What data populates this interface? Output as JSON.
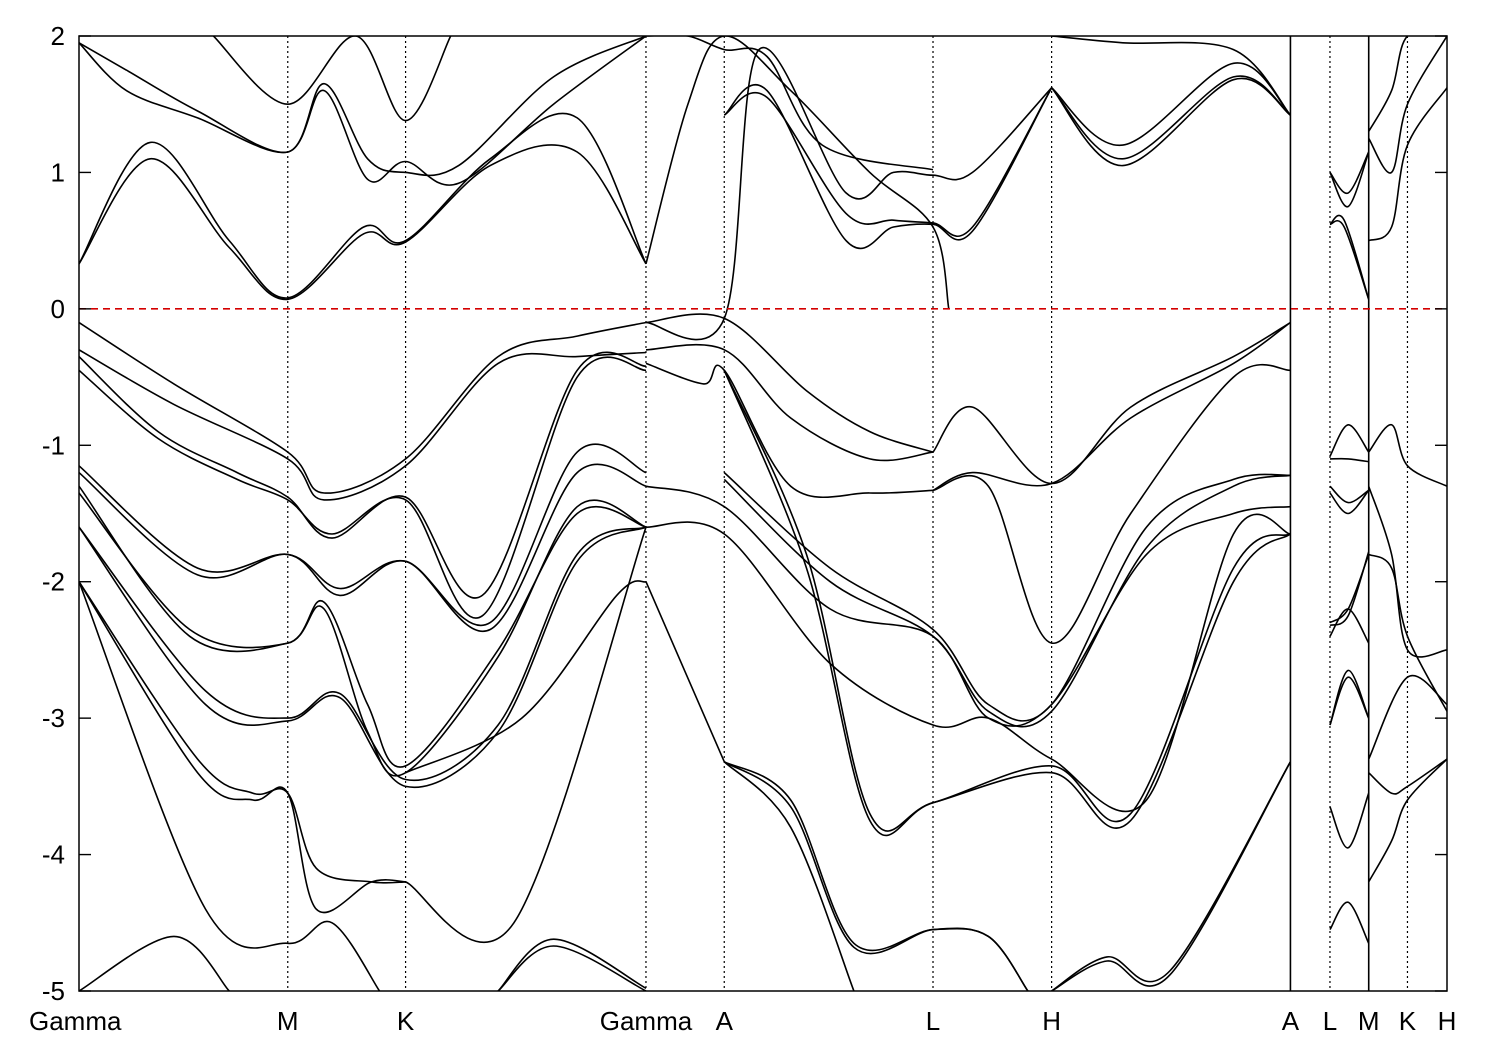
{
  "chart_data": {
    "type": "line",
    "title": "",
    "xlabel": "",
    "ylabel": "",
    "ylim": [
      -5,
      2
    ],
    "yticks": [
      -5,
      -4,
      -3,
      -2,
      -1,
      0,
      1,
      2
    ],
    "xlim": [
      0,
      17.3
    ],
    "kpoints": [
      {
        "label": "Gamma",
        "x": 0
      },
      {
        "label": "M",
        "x": 2.64
      },
      {
        "label": "K",
        "x": 4.13
      },
      {
        "label": "Gamma",
        "x": 7.17
      },
      {
        "label": "A",
        "x": 8.16
      },
      {
        "label": "L",
        "x": 10.8
      },
      {
        "label": "H",
        "x": 12.3
      },
      {
        "label": "A",
        "x": 15.32
      },
      {
        "label": "L",
        "x": 15.82
      },
      {
        "label": "M",
        "x": 16.31
      },
      {
        "label": "K",
        "x": 16.8
      },
      {
        "label": "H",
        "x": 17.3
      }
    ],
    "gaps": [
      15.32,
      16.31
    ],
    "fermi_level": 0,
    "fermi_color": "#d40000",
    "line_color": "#000000",
    "bands": [
      {
        "x": [
          0,
          0.9,
          1.9,
          2.64,
          3.6,
          4.13,
          5.2,
          6.3,
          7.17
        ],
        "y": [
          0.33,
          1.1,
          0.45,
          0.07,
          0.55,
          0.49,
          1.05,
          1.15,
          0.33
        ]
      },
      {
        "x": [
          0,
          0.9,
          1.9,
          2.64,
          3.6,
          4.13,
          5.2,
          6.3,
          7.17
        ],
        "y": [
          0.33,
          1.22,
          0.5,
          0.08,
          0.6,
          0.5,
          1.1,
          1.4,
          0.33
        ]
      },
      {
        "x": [
          0,
          0.6,
          1.5,
          2.64,
          3.1,
          3.65,
          4.13,
          4.8,
          6.0,
          7.17
        ],
        "y": [
          1.95,
          1.6,
          1.4,
          1.15,
          1.6,
          0.95,
          1.08,
          0.92,
          1.5,
          2.0
        ]
      },
      {
        "x": [
          0,
          0.6,
          1.5,
          2.64,
          3.1,
          3.65,
          4.13,
          4.8,
          6.0,
          7.17
        ],
        "y": [
          1.95,
          1.75,
          1.45,
          1.15,
          1.65,
          1.1,
          1.0,
          1.05,
          1.7,
          2.0
        ]
      },
      {
        "x": [
          1.7,
          2.64,
          3.5,
          4.13,
          4.7
        ],
        "y": [
          2.0,
          1.5,
          2.0,
          1.38,
          2.0
        ]
      },
      {
        "x": [
          0,
          1.2,
          2.64,
          3.1,
          4.13,
          5.3,
          6.3,
          7.17
        ],
        "y": [
          -0.1,
          -0.55,
          -1.05,
          -1.35,
          -1.1,
          -0.35,
          -0.2,
          -0.1
        ]
      },
      {
        "x": [
          0,
          1.2,
          2.64,
          3.1,
          4.13,
          5.3,
          6.3,
          7.17
        ],
        "y": [
          -0.3,
          -0.7,
          -1.1,
          -1.4,
          -1.15,
          -0.4,
          -0.35,
          -0.32
        ]
      },
      {
        "x": [
          0,
          1.0,
          2.0,
          2.64,
          3.2,
          4.13,
          5.1,
          6.3,
          7.17
        ],
        "y": [
          -0.35,
          -0.9,
          -1.2,
          -1.38,
          -1.68,
          -1.38,
          -2.1,
          -0.45,
          -0.42
        ]
      },
      {
        "x": [
          0,
          1.0,
          2.0,
          2.64,
          3.2,
          4.13,
          5.1,
          6.3,
          7.17
        ],
        "y": [
          -0.45,
          -0.95,
          -1.25,
          -1.4,
          -1.65,
          -1.4,
          -2.25,
          -0.5,
          -0.45
        ]
      },
      {
        "x": [
          0,
          1.5,
          2.64,
          3.3,
          4.13,
          5.2,
          6.3,
          7.17
        ],
        "y": [
          -1.2,
          -1.95,
          -1.8,
          -2.1,
          -1.85,
          -2.35,
          -1.2,
          -1.3
        ]
      },
      {
        "x": [
          0,
          1.5,
          2.64,
          3.3,
          4.13,
          5.2,
          6.3,
          7.17
        ],
        "y": [
          -1.15,
          -1.9,
          -1.8,
          -2.05,
          -1.85,
          -2.3,
          -1.05,
          -1.2
        ]
      },
      {
        "x": [
          0,
          1.4,
          2.64,
          3.1,
          3.65,
          4.13,
          5.3,
          6.3,
          7.17
        ],
        "y": [
          -1.35,
          -2.35,
          -2.45,
          -2.15,
          -2.9,
          -3.35,
          -2.5,
          -1.5,
          -1.6
        ]
      },
      {
        "x": [
          0,
          1.4,
          2.64,
          3.1,
          3.65,
          4.13,
          5.3,
          6.3,
          7.17
        ],
        "y": [
          -1.3,
          -2.4,
          -2.45,
          -2.2,
          -3.1,
          -3.4,
          -2.55,
          -1.45,
          -1.6
        ]
      },
      {
        "x": [
          0,
          1.6,
          2.64,
          3.3,
          4.13,
          5.3,
          6.3,
          7.17
        ],
        "y": [
          -1.6,
          -2.8,
          -3.0,
          -2.82,
          -3.45,
          -3.05,
          -1.8,
          -1.6
        ]
      },
      {
        "x": [
          0,
          1.6,
          2.64,
          3.3,
          4.13,
          5.3,
          6.3,
          7.17
        ],
        "y": [
          -1.6,
          -2.9,
          -3.02,
          -2.85,
          -3.5,
          -3.1,
          -1.85,
          -1.6
        ]
      },
      {
        "x": [
          0,
          1.5,
          2.2,
          2.64,
          3.0,
          3.7,
          4.13
        ],
        "y": [
          -2.0,
          -3.3,
          -3.55,
          -3.55,
          -4.1,
          -4.2,
          -4.2
        ]
      },
      {
        "x": [
          0,
          1.5,
          2.2,
          2.64,
          3.0,
          3.7,
          4.13
        ],
        "y": [
          -2.0,
          -3.4,
          -3.6,
          -3.55,
          -4.4,
          -4.2,
          -4.2
        ]
      },
      {
        "x": [
          0,
          1.6,
          2.64,
          3.2,
          3.8
        ],
        "y": [
          -2.0,
          -4.4,
          -4.65,
          -4.5,
          -5.0
        ]
      },
      {
        "x": [
          0,
          1.2,
          1.9
        ],
        "y": [
          -5.0,
          -4.6,
          -5.0
        ]
      },
      {
        "x": [
          5.3,
          6.0,
          7.17
        ],
        "y": [
          -5.0,
          -4.62,
          -4.98
        ]
      },
      {
        "x": [
          5.3,
          6.0,
          7.17
        ],
        "y": [
          -5.0,
          -4.67,
          -5.0
        ]
      },
      {
        "x": [
          4.13,
          5.5,
          7.17
        ],
        "y": [
          -4.2,
          -4.5,
          -1.6
        ]
      },
      {
        "x": [
          4.13,
          5.6,
          6.8,
          7.17
        ],
        "y": [
          -3.4,
          -3.0,
          -2.1,
          -2.0
        ]
      },
      {
        "x": [
          7.17,
          7.7,
          8.16,
          9.0,
          10.0,
          10.8,
          11.0
        ],
        "y": [
          0.33,
          1.5,
          2.0,
          1.6,
          1.0,
          0.6,
          0.0
        ]
      },
      {
        "x": [
          7.17,
          8.16,
          8.6,
          9.7,
          10.3,
          10.8,
          11.3,
          12.3
        ],
        "y": [
          -0.1,
          -0.07,
          1.9,
          0.85,
          1.0,
          0.98,
          1.0,
          1.62
        ]
      },
      {
        "x": [
          8.16,
          8.7,
          9.7,
          10.3,
          10.8,
          11.3,
          12.3
        ],
        "y": [
          1.42,
          1.6,
          0.5,
          0.6,
          0.62,
          0.57,
          1.62
        ]
      },
      {
        "x": [
          8.16,
          8.7,
          9.7,
          10.3,
          10.8,
          11.3,
          12.3
        ],
        "y": [
          1.42,
          1.55,
          0.7,
          0.65,
          0.63,
          0.6,
          1.62
        ]
      },
      {
        "x": [
          7.17,
          7.7,
          8.16,
          8.7,
          9.4,
          10.8
        ],
        "y": [
          2.0,
          2.0,
          1.9,
          1.85,
          1.2,
          1.02
        ]
      },
      {
        "x": [
          12.3,
          13.2,
          14.6,
          15.32
        ],
        "y": [
          1.62,
          1.1,
          1.7,
          1.42
        ]
      },
      {
        "x": [
          12.3,
          13.2,
          14.6,
          15.32
        ],
        "y": [
          1.62,
          1.05,
          1.68,
          1.42
        ]
      },
      {
        "x": [
          12.3,
          13.2,
          14.6,
          15.32
        ],
        "y": [
          1.62,
          1.2,
          1.8,
          1.42
        ]
      },
      {
        "x": [
          12.3,
          13.2,
          14.6,
          15.32
        ],
        "y": [
          2.0,
          1.95,
          1.9,
          1.42
        ]
      },
      {
        "x": [
          7.17,
          8.16,
          9.0,
          10.0,
          10.8
        ],
        "y": [
          -0.3,
          -0.3,
          -0.8,
          -1.1,
          -1.05
        ]
      },
      {
        "x": [
          7.17,
          7.9,
          8.16,
          9.0,
          10.0,
          10.8
        ],
        "y": [
          -0.4,
          -0.55,
          -0.45,
          -1.3,
          -1.35,
          -1.33
        ]
      },
      {
        "x": [
          7.17,
          8.16,
          9.2,
          10.0,
          10.8
        ],
        "y": [
          -0.1,
          -0.07,
          -0.6,
          -0.9,
          -1.05
        ]
      },
      {
        "x": [
          10.8,
          11.3,
          12.3,
          13.3,
          14.6,
          15.32
        ],
        "y": [
          -1.05,
          -0.72,
          -1.28,
          -0.72,
          -0.35,
          -0.1
        ]
      },
      {
        "x": [
          10.8,
          11.3,
          12.3,
          13.3,
          14.6,
          15.32
        ],
        "y": [
          -1.33,
          -1.2,
          -1.28,
          -0.8,
          -0.4,
          -0.1
        ]
      },
      {
        "x": [
          8.16,
          9.5,
          10.8,
          11.5,
          12.3,
          13.5,
          14.6,
          15.32
        ],
        "y": [
          -1.2,
          -1.9,
          -2.35,
          -2.9,
          -2.9,
          -1.6,
          -1.25,
          -1.22
        ]
      },
      {
        "x": [
          8.16,
          9.5,
          10.8,
          11.5,
          12.3,
          13.5,
          14.6,
          15.32
        ],
        "y": [
          -1.25,
          -2.0,
          -2.4,
          -2.95,
          -2.95,
          -1.75,
          -1.3,
          -1.22
        ]
      },
      {
        "x": [
          7.17,
          8.16,
          9.5,
          10.8,
          11.5,
          12.3,
          13.5,
          14.6,
          15.32
        ],
        "y": [
          -1.3,
          -1.45,
          -2.2,
          -2.4,
          -3.0,
          -2.9,
          -1.8,
          -1.5,
          -1.45
        ]
      },
      {
        "x": [
          7.17,
          8.16,
          9.5,
          10.8,
          11.5,
          12.3,
          13.5,
          14.6,
          15.32
        ],
        "y": [
          -1.6,
          -1.65,
          -2.6,
          -3.05,
          -3.0,
          -3.3,
          -3.6,
          -1.65,
          -1.65
        ]
      },
      {
        "x": [
          8.16,
          9.2,
          10.0,
          10.8,
          12.3,
          13.3,
          14.6,
          15.32
        ],
        "y": [
          -0.45,
          -1.8,
          -3.7,
          -3.62,
          -3.35,
          -3.7,
          -1.9,
          -1.65
        ]
      },
      {
        "x": [
          8.16,
          9.2,
          10.0,
          10.8,
          12.3,
          13.3,
          14.6,
          15.32
        ],
        "y": [
          -0.45,
          -1.9,
          -3.75,
          -3.62,
          -3.4,
          -3.75,
          -2.0,
          -1.65
        ]
      },
      {
        "x": [
          10.8,
          11.5,
          12.3,
          13.3,
          14.6,
          15.32
        ],
        "y": [
          -1.33,
          -1.3,
          -2.45,
          -1.5,
          -0.5,
          -0.45
        ]
      },
      {
        "x": [
          7.17,
          8.16
        ],
        "y": [
          -2.0,
          -3.32
        ]
      },
      {
        "x": [
          8.16,
          9.0,
          9.8,
          10.8,
          11.5,
          12.0
        ],
        "y": [
          -3.32,
          -3.6,
          -4.65,
          -4.55,
          -4.6,
          -5.0
        ]
      },
      {
        "x": [
          8.16,
          9.0,
          9.8,
          10.8,
          11.5,
          12.0
        ],
        "y": [
          -3.32,
          -3.65,
          -4.68,
          -4.55,
          -4.6,
          -5.0
        ]
      },
      {
        "x": [
          8.16,
          9.0,
          9.8
        ],
        "y": [
          -3.32,
          -3.8,
          -5.0
        ]
      },
      {
        "x": [
          12.3,
          13.0,
          13.8,
          15.32
        ],
        "y": [
          -5.0,
          -4.75,
          -4.85,
          -3.32
        ]
      },
      {
        "x": [
          12.3,
          13.0,
          13.8,
          15.32
        ],
        "y": [
          -5.0,
          -4.78,
          -4.88,
          -3.32
        ]
      },
      {
        "x": [
          15.82,
          16.0,
          16.31
        ],
        "y": [
          0.62,
          0.65,
          0.07
        ]
      },
      {
        "x": [
          15.82,
          16.0,
          16.31
        ],
        "y": [
          0.62,
          0.6,
          0.07
        ]
      },
      {
        "x": [
          15.82,
          16.05,
          16.31
        ],
        "y": [
          1.0,
          0.85,
          1.15
        ]
      },
      {
        "x": [
          15.82,
          16.05,
          16.31
        ],
        "y": [
          1.0,
          0.75,
          1.15
        ]
      },
      {
        "x": [
          15.82,
          16.05,
          16.31
        ],
        "y": [
          -1.08,
          -0.85,
          -1.05
        ]
      },
      {
        "x": [
          15.82,
          16.05,
          16.31
        ],
        "y": [
          -1.1,
          -1.1,
          -1.12
        ]
      },
      {
        "x": [
          15.82,
          16.05,
          16.31
        ],
        "y": [
          -1.3,
          -1.42,
          -1.33
        ]
      },
      {
        "x": [
          15.82,
          16.05,
          16.31
        ],
        "y": [
          -1.35,
          -1.5,
          -1.33
        ]
      },
      {
        "x": [
          15.82,
          16.05,
          16.31
        ],
        "y": [
          -2.3,
          -2.2,
          -1.8
        ]
      },
      {
        "x": [
          15.82,
          16.05,
          16.31
        ],
        "y": [
          -2.32,
          -2.25,
          -1.78
        ]
      },
      {
        "x": [
          15.82,
          16.05,
          16.31
        ],
        "y": [
          -2.4,
          -2.2,
          -2.45
        ]
      },
      {
        "x": [
          15.82,
          16.05,
          16.31
        ],
        "y": [
          -3.05,
          -2.65,
          -3.0
        ]
      },
      {
        "x": [
          15.82,
          16.05,
          16.31
        ],
        "y": [
          -3.05,
          -2.7,
          -3.0
        ]
      },
      {
        "x": [
          15.82,
          16.05,
          16.31
        ],
        "y": [
          -3.65,
          -3.95,
          -3.55
        ]
      },
      {
        "x": [
          15.82,
          16.05,
          16.31
        ],
        "y": [
          -4.55,
          -4.35,
          -4.65
        ]
      },
      {
        "x": [
          16.31,
          16.6,
          16.8,
          17.3
        ],
        "y": [
          1.3,
          1.6,
          2.0,
          2.0
        ]
      },
      {
        "x": [
          16.31,
          16.6,
          16.8,
          17.3
        ],
        "y": [
          1.25,
          1.0,
          1.5,
          2.0
        ]
      },
      {
        "x": [
          16.31,
          16.6,
          16.8,
          17.3
        ],
        "y": [
          0.5,
          0.6,
          1.2,
          1.62
        ]
      },
      {
        "x": [
          16.31,
          16.6,
          16.8,
          17.3
        ],
        "y": [
          -1.05,
          -0.85,
          -1.15,
          -1.3
        ]
      },
      {
        "x": [
          16.31,
          16.6,
          16.8,
          17.3
        ],
        "y": [
          -1.3,
          -1.8,
          -2.5,
          -2.5
        ]
      },
      {
        "x": [
          16.31,
          16.6,
          16.8,
          17.3
        ],
        "y": [
          -1.8,
          -1.9,
          -2.4,
          -2.95
        ]
      },
      {
        "x": [
          16.31,
          16.6,
          16.8,
          17.3
        ],
        "y": [
          -3.4,
          -3.55,
          -3.5,
          -3.3
        ]
      },
      {
        "x": [
          16.31,
          16.6,
          16.8,
          17.3
        ],
        "y": [
          -4.2,
          -3.9,
          -3.6,
          -3.3
        ]
      },
      {
        "x": [
          16.31,
          16.8,
          17.3
        ],
        "y": [
          -3.3,
          -2.7,
          -2.9
        ]
      }
    ]
  }
}
